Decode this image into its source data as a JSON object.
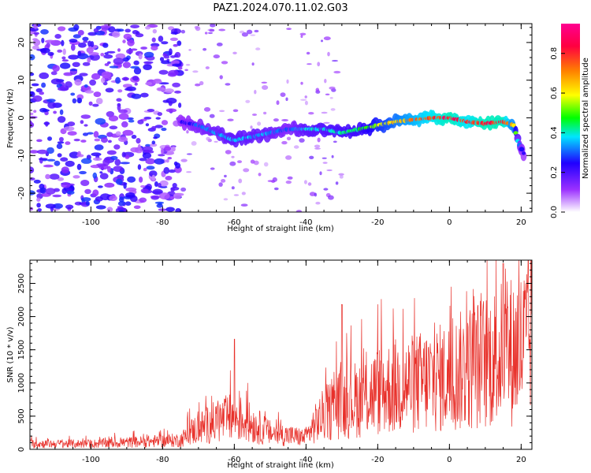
{
  "title": "PAZ1.2024.070.11.02.G03",
  "chart_data": [
    {
      "type": "heatmap",
      "xlabel": "Height of straight line (km)",
      "ylabel": "Frequency (Hz)",
      "xlim": [
        -117,
        23
      ],
      "ylim": [
        -25,
        25
      ],
      "xticks": [
        -100,
        -80,
        -60,
        -40,
        -20,
        0,
        20
      ],
      "yticks": [
        -20,
        -10,
        0,
        10,
        20
      ],
      "colorbar": {
        "label": "Normalized spectral amplitude",
        "range": [
          0,
          0.95
        ],
        "ticks": [
          "0.0",
          "0.2",
          "0.4",
          "0.6",
          "0.8"
        ],
        "colors": [
          "#ffffff",
          "#9b30ff",
          "#2000ff",
          "#00e5ff",
          "#00ff00",
          "#ffff00",
          "#ff7f00",
          "#ff0040",
          "#ff0090"
        ]
      },
      "ridge": {
        "x": [
          -75,
          -70,
          -65,
          -60,
          -55,
          -50,
          -45,
          -40,
          -35,
          -30,
          -25,
          -20,
          -15,
          -10,
          -5,
          0,
          5,
          10,
          15,
          18,
          19,
          20,
          21
        ],
        "freq": [
          -1,
          -2,
          -4,
          -6,
          -5,
          -4,
          -3,
          -3,
          -3,
          -4,
          -3,
          -2,
          -1,
          -0.5,
          0,
          0,
          -1,
          -1.5,
          -1,
          -2,
          -6,
          -8,
          -10
        ],
        "amplitude": [
          0.25,
          0.32,
          0.35,
          0.4,
          0.38,
          0.36,
          0.3,
          0.4,
          0.42,
          0.45,
          0.48,
          0.6,
          0.7,
          0.78,
          0.85,
          0.9,
          0.85,
          0.9,
          0.9,
          0.7,
          0.4,
          0.3,
          0.2
        ]
      },
      "noise_region": {
        "x": [
          -117,
          -75
        ],
        "amplitude": 0.25
      }
    },
    {
      "type": "line",
      "xlabel": "Height of straight line (km)",
      "ylabel": "SNR (10 * v/v)",
      "xlim": [
        -117,
        23
      ],
      "ylim": [
        0,
        2850
      ],
      "xticks": [
        -100,
        -80,
        -60,
        -40,
        -20,
        0,
        20
      ],
      "yticks": [
        0,
        500,
        1000,
        1500,
        2000,
        2500
      ],
      "color": "#e8302a",
      "envelope": {
        "x": [
          -117,
          -100,
          -90,
          -80,
          -75,
          -72,
          -70,
          -65,
          -60,
          -55,
          -50,
          -45,
          -40,
          -38,
          -35,
          -30,
          -25,
          -20,
          -15,
          -10,
          -5,
          0,
          5,
          10,
          15,
          20,
          23
        ],
        "y": [
          120,
          120,
          150,
          180,
          200,
          380,
          450,
          600,
          700,
          550,
          350,
          300,
          250,
          500,
          750,
          1000,
          1100,
          1250,
          1350,
          1400,
          1500,
          1550,
          1750,
          1900,
          2050,
          2200,
          2450
        ]
      },
      "spikes": [
        {
          "x": -60,
          "y": 1660
        },
        {
          "x": -30,
          "y": 2180
        },
        {
          "x": 15,
          "y": 2800
        },
        {
          "x": 22,
          "y": 2850
        }
      ]
    }
  ]
}
